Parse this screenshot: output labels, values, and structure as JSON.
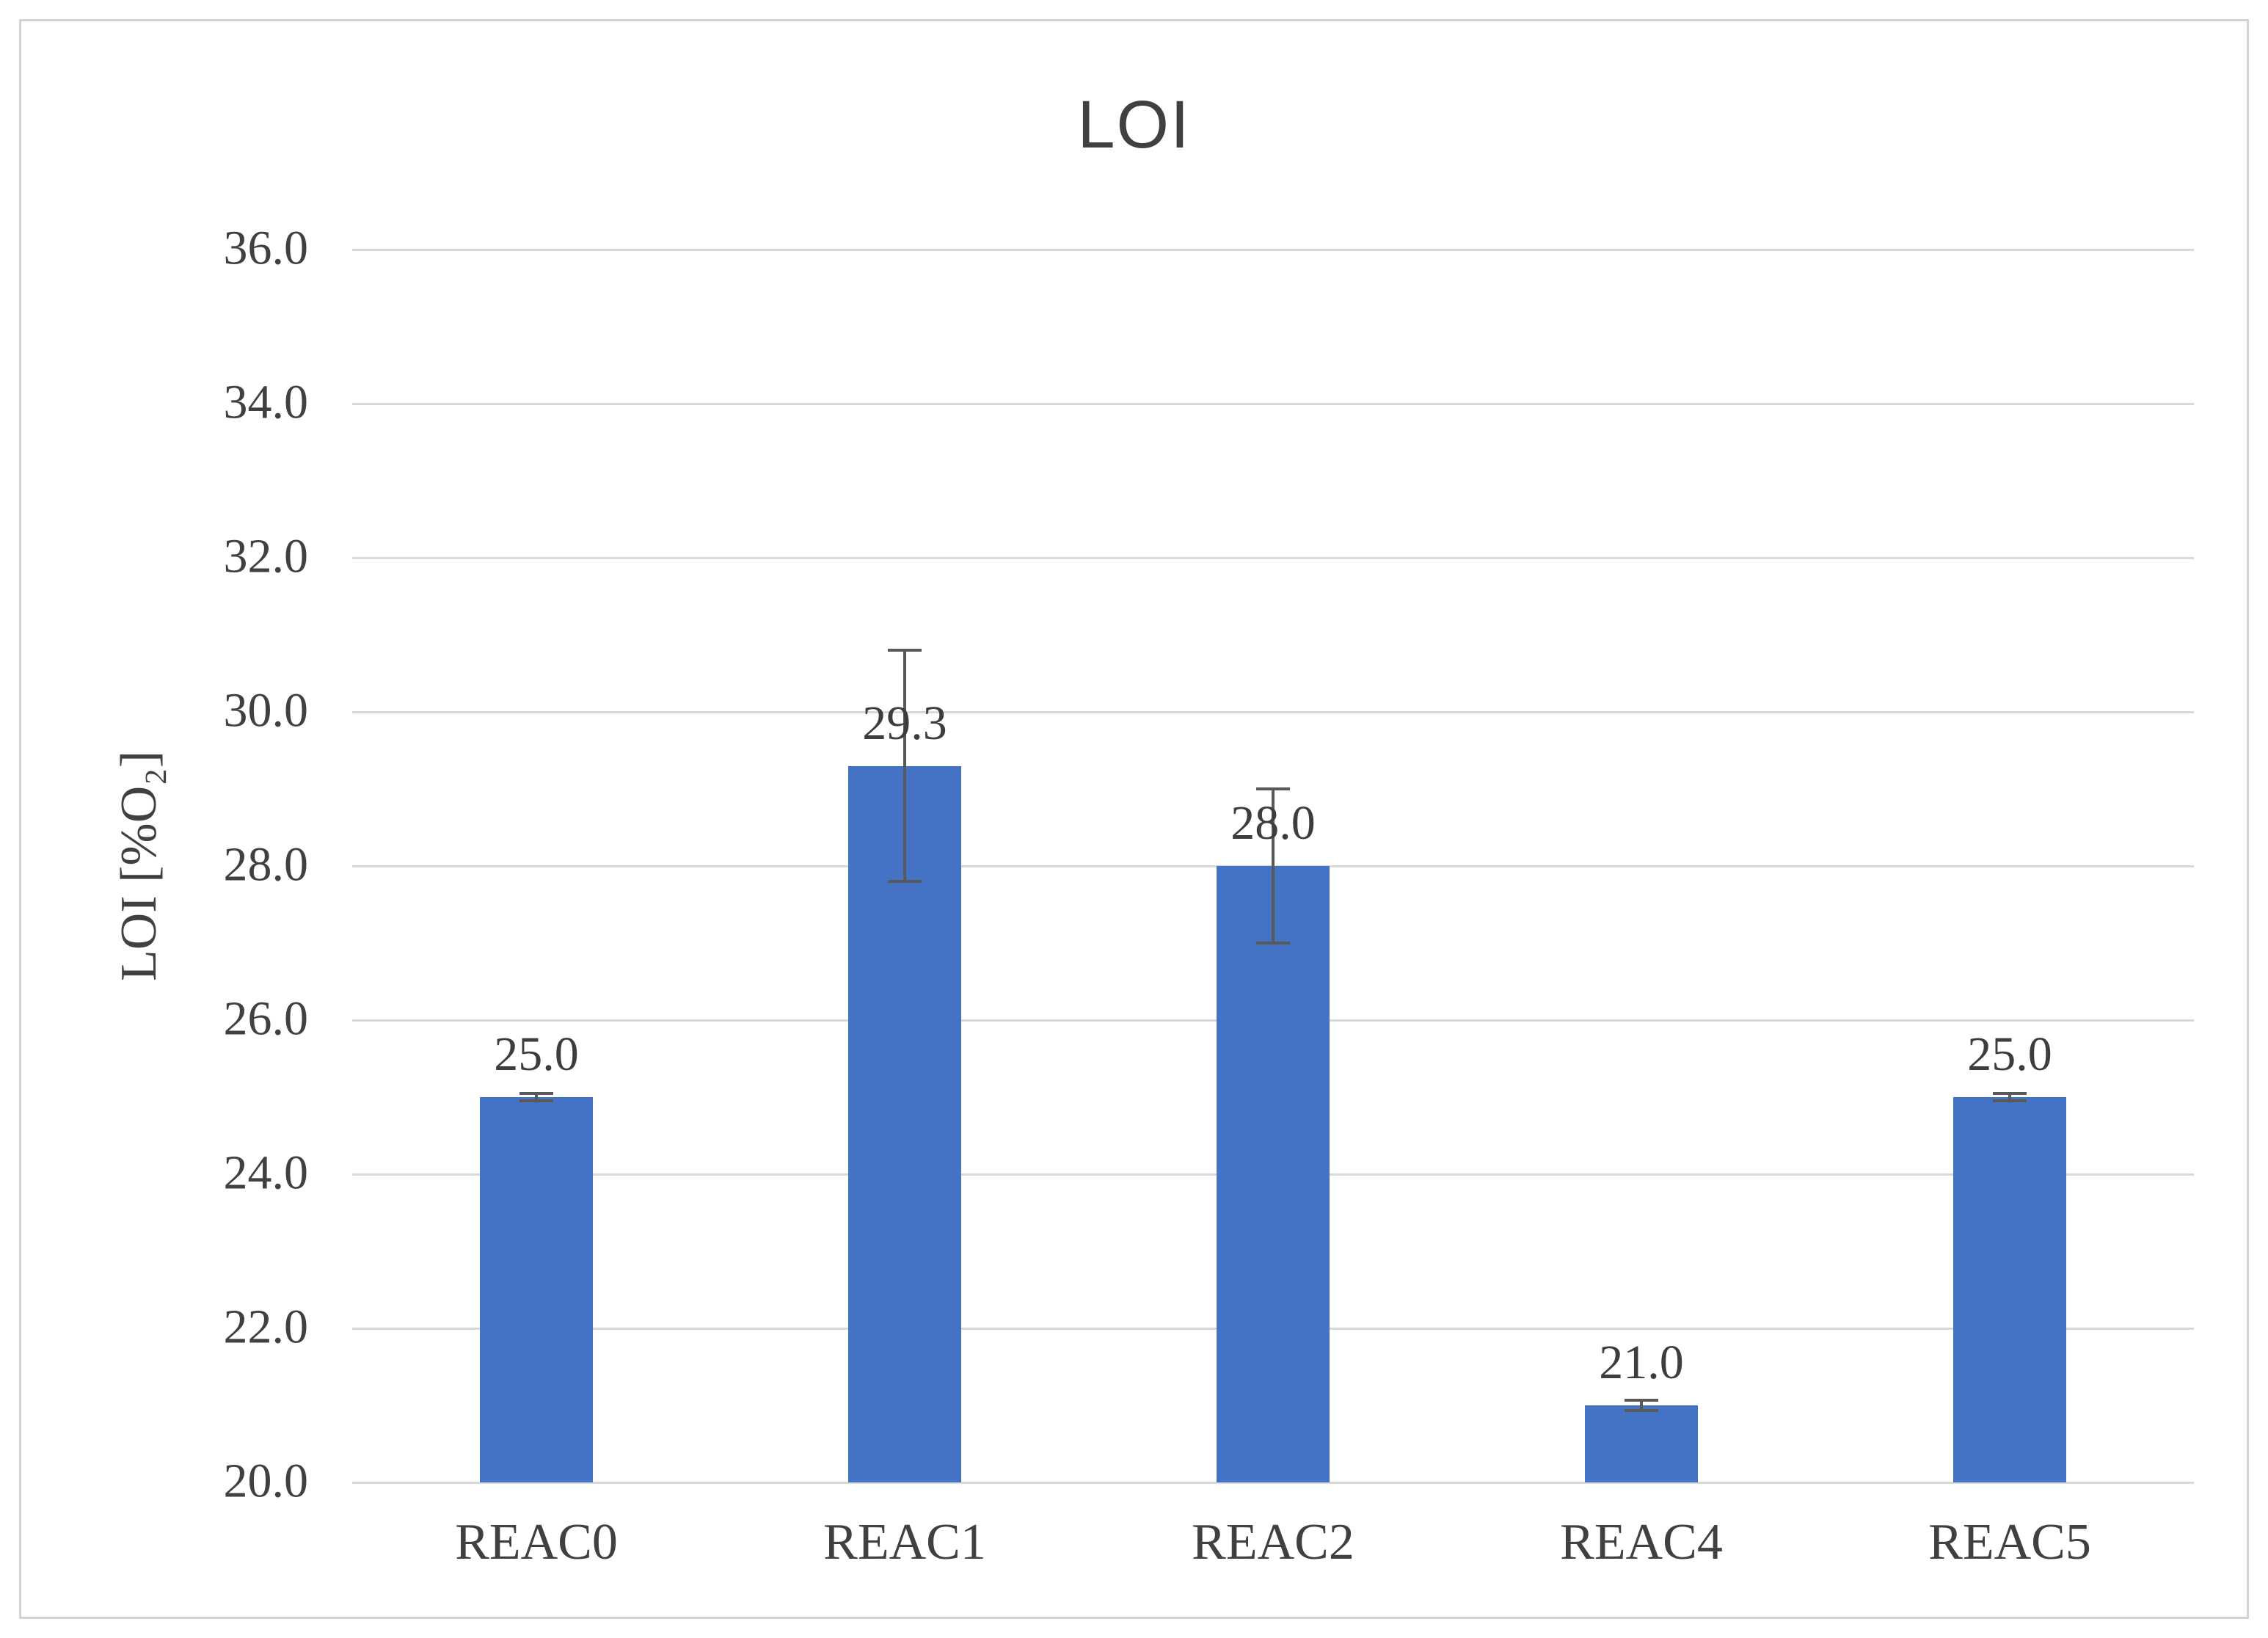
{
  "page": {
    "background": "#ffffff",
    "frame_border_color": "#d2d2d2"
  },
  "chart_data": {
    "type": "bar",
    "title": "LOI",
    "categories": [
      "REAC0",
      "REAC1",
      "REAC2",
      "REAC4",
      "REAC5"
    ],
    "values": [
      25.0,
      29.3,
      28.0,
      21.0,
      25.0
    ],
    "data_labels": [
      "25.0",
      "29.3",
      "28.0",
      "21.0",
      "25.0"
    ],
    "error_bars": [
      0.05,
      1.5,
      1.0,
      0.07,
      0.05
    ],
    "xlabel": "",
    "ylabel": "LOI [%O₂]",
    "ylim": [
      20.0,
      36.0
    ],
    "ytick_step": 2.0,
    "ytick_labels": [
      "20.0",
      "22.0",
      "24.0",
      "26.0",
      "28.0",
      "30.0",
      "32.0",
      "34.0",
      "36.0"
    ],
    "grid": true,
    "legend": false,
    "colors": {
      "bar": "#4472C4",
      "gridline": "#D9D9D9",
      "error_bar": "#595959",
      "text": "#404040"
    }
  }
}
